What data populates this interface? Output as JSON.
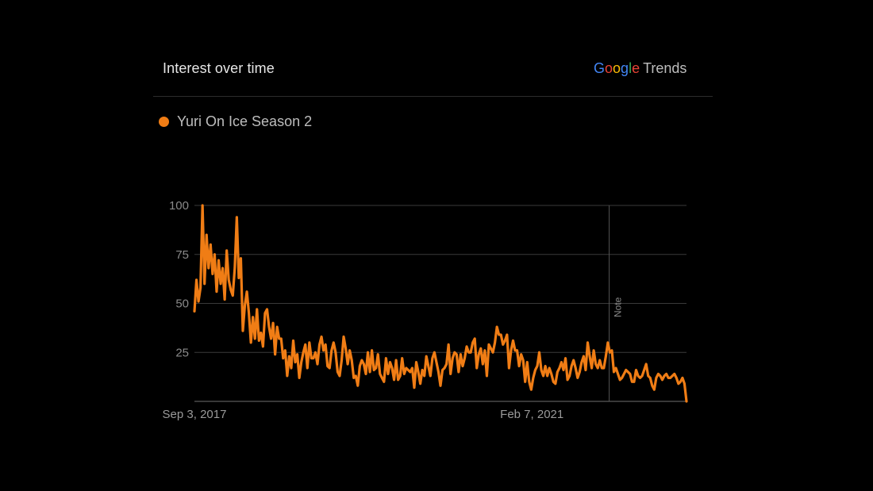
{
  "header": {
    "title": "Interest over time",
    "brand_google": [
      "G",
      "o",
      "o",
      "g",
      "l",
      "e"
    ],
    "brand_trends": "Trends"
  },
  "legend": {
    "label": "Yuri On Ice Season 2"
  },
  "colors": {
    "series": "#f07d15",
    "background": "#000000",
    "grid": "#3a3a3a"
  },
  "chart_data": {
    "type": "line",
    "title": "Interest over time",
    "xlabel": "",
    "ylabel": "",
    "ylim": [
      0,
      100
    ],
    "y_ticks": [
      25,
      50,
      75,
      100
    ],
    "x_ticks": [
      "Sep 3, 2017",
      "Feb 7, 2021"
    ],
    "x_range": [
      "2017-09-03",
      "2022-09-04"
    ],
    "grid": true,
    "legend": "top-left",
    "annotation": {
      "label": "Note",
      "date": "2021-11-21"
    },
    "series": [
      {
        "name": "Yuri On Ice Season 2",
        "color": "#f07d15",
        "values": [
          46,
          62,
          51,
          58,
          100,
          60,
          85,
          68,
          80,
          65,
          75,
          56,
          72,
          60,
          68,
          52,
          77,
          62,
          57,
          54,
          68,
          94,
          63,
          73,
          36,
          49,
          56,
          45,
          30,
          43,
          32,
          47,
          31,
          35,
          28,
          45,
          47,
          38,
          32,
          40,
          24,
          38,
          32,
          32,
          22,
          26,
          13,
          23,
          17,
          31,
          20,
          24,
          12,
          20,
          25,
          29,
          17,
          30,
          22,
          22,
          25,
          19,
          29,
          33,
          26,
          29,
          18,
          17,
          26,
          30,
          25,
          15,
          13,
          21,
          33,
          27,
          19,
          26,
          21,
          12,
          13,
          8,
          18,
          21,
          19,
          14,
          25,
          15,
          26,
          16,
          17,
          24,
          14,
          12,
          10,
          22,
          14,
          20,
          17,
          11,
          21,
          11,
          13,
          22,
          14,
          17,
          16,
          15,
          17,
          7,
          20,
          15,
          9,
          16,
          13,
          23,
          18,
          13,
          22,
          25,
          20,
          15,
          8,
          16,
          17,
          19,
          29,
          14,
          22,
          25,
          24,
          15,
          24,
          18,
          22,
          28,
          25,
          25,
          30,
          32,
          17,
          24,
          27,
          19,
          26,
          13,
          29,
          27,
          25,
          30,
          38,
          34,
          34,
          29,
          31,
          34,
          17,
          26,
          31,
          26,
          26,
          18,
          24,
          21,
          10,
          20,
          10,
          6,
          12,
          16,
          18,
          25,
          16,
          13,
          18,
          13,
          17,
          14,
          10,
          9,
          15,
          17,
          20,
          16,
          22,
          11,
          13,
          18,
          21,
          17,
          12,
          15,
          20,
          23,
          16,
          30,
          23,
          17,
          26,
          19,
          17,
          21,
          17,
          17,
          23,
          30,
          25,
          26,
          15,
          17,
          14,
          11,
          12,
          14,
          16,
          15,
          14,
          10,
          10,
          16,
          13,
          12,
          13,
          16,
          19,
          13,
          12,
          8,
          6,
          12,
          14,
          13,
          11,
          13,
          14,
          12,
          12,
          13,
          14,
          12,
          9,
          10,
          12,
          9,
          0
        ]
      }
    ]
  }
}
